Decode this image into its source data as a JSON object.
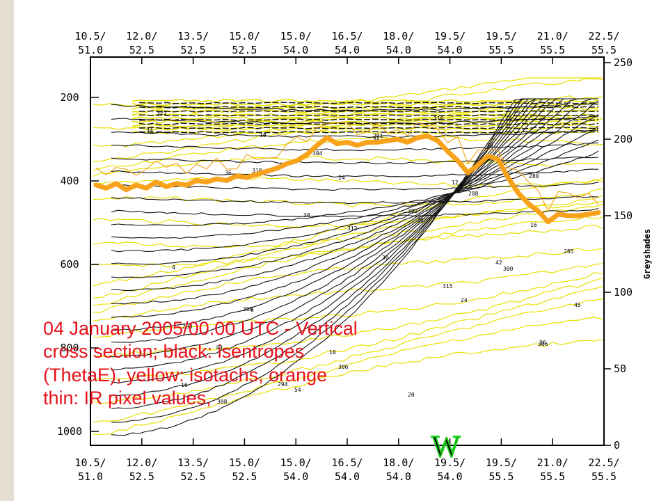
{
  "caption": "04 January 2005/00.00 UTC - Vertical cross section; black: isentropes (ThetaE), yellow: isotachs, orange thin: IR pixel values,",
  "colors": {
    "isentropes": "#111111",
    "isotachs": "#e8e000",
    "ir_pixel_thin": "#ee9a00",
    "ir_pixel_thick": "#f7a21b",
    "caption_text": "#e8101a",
    "marker": "#22d422",
    "slide_band": "#e3ddd2"
  },
  "chart_data": {
    "type": "line",
    "x_ticks": [
      {
        "lon": "10.5/",
        "lat": "51.0"
      },
      {
        "lon": "12.0/",
        "lat": "52.5"
      },
      {
        "lon": "13.5/",
        "lat": "52.5"
      },
      {
        "lon": "15.0/",
        "lat": "52.5"
      },
      {
        "lon": "15.0/",
        "lat": "54.0"
      },
      {
        "lon": "16.5/",
        "lat": "54.0"
      },
      {
        "lon": "18.0/",
        "lat": "54.0"
      },
      {
        "lon": "19.5/",
        "lat": "54.0"
      },
      {
        "lon": "19.5/",
        "lat": "55.5"
      },
      {
        "lon": "21.0/",
        "lat": "55.5"
      },
      {
        "lon": "22.5/",
        "lat": "55.5"
      }
    ],
    "y_left": {
      "label": "",
      "ticks": [
        200,
        400,
        600,
        800,
        1000
      ],
      "range": [
        1000,
        200
      ],
      "inverted": true
    },
    "y_right": {
      "label": "Greyshades",
      "ticks": [
        0,
        50,
        100,
        150,
        200,
        250
      ],
      "range": [
        0,
        250
      ]
    },
    "marker": "W",
    "isentrope_labels": [
      "321",
      "318",
      "312",
      "315",
      "306",
      "308",
      "304",
      "302",
      "300",
      "298",
      "294",
      "291",
      "288",
      "285",
      "300",
      "306",
      "310",
      "280"
    ],
    "isotach_labels": [
      "34",
      "36",
      "30",
      "30",
      "24",
      "36",
      "16",
      "18",
      "24",
      "30",
      "42",
      "45",
      "40",
      "54",
      "36",
      "12",
      "16",
      "4",
      "6",
      "10",
      "20",
      "30"
    ],
    "series": [
      {
        "name": "IR pixel values",
        "x_index": [
          0,
          0.2,
          0.4,
          0.6,
          0.8,
          1.0,
          1.2,
          1.4,
          1.6,
          1.8,
          2.0,
          2.2,
          2.4,
          2.6,
          2.8,
          3.0,
          3.2,
          3.4,
          3.6,
          3.8,
          4.0,
          4.2,
          4.4,
          4.6,
          4.8,
          5.0,
          5.2,
          5.4,
          5.6,
          5.8,
          6.0,
          6.2,
          6.4,
          6.6,
          6.8,
          7.0,
          7.2,
          7.4,
          7.6,
          7.8,
          8.0,
          8.2,
          8.4,
          8.6,
          8.8,
          9.0,
          9.2,
          9.4,
          9.6,
          9.8,
          10.0
        ],
        "greyshades": [
          170,
          168,
          171,
          167,
          170,
          168,
          172,
          169,
          171,
          170,
          173,
          172,
          174,
          173,
          176,
          175,
          177,
          179,
          181,
          184,
          186,
          190,
          196,
          201,
          197,
          198,
          196,
          198,
          198,
          199,
          200,
          198,
          201,
          202,
          199,
          192,
          186,
          178,
          183,
          189,
          187,
          175,
          165,
          158,
          153,
          146,
          151,
          150,
          150,
          151,
          152
        ]
      }
    ]
  }
}
